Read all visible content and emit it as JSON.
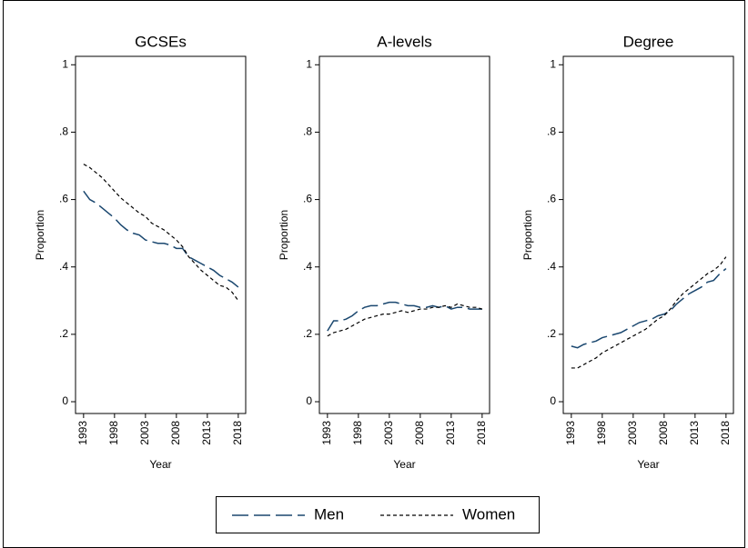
{
  "chart_data": [
    {
      "type": "line",
      "title": "GCSEs",
      "x_label": "Year",
      "y_label": "Proportion",
      "x": [
        1993,
        1994,
        1995,
        1996,
        1997,
        1998,
        1999,
        2000,
        2001,
        2002,
        2003,
        2004,
        2005,
        2006,
        2007,
        2008,
        2009,
        2010,
        2011,
        2012,
        2013,
        2014,
        2015,
        2016,
        2017,
        2018
      ],
      "series": [
        {
          "name": "Men",
          "color": "#1a476f",
          "values": [
            0.625,
            0.6,
            0.59,
            0.575,
            0.56,
            0.545,
            0.525,
            0.51,
            0.5,
            0.495,
            0.48,
            0.475,
            0.47,
            0.47,
            0.465,
            0.455,
            0.455,
            0.43,
            0.42,
            0.41,
            0.4,
            0.39,
            0.375,
            0.365,
            0.355,
            0.34
          ]
        },
        {
          "name": "Women",
          "color": "#000000",
          "values": [
            0.705,
            0.695,
            0.68,
            0.665,
            0.645,
            0.625,
            0.605,
            0.59,
            0.575,
            0.56,
            0.55,
            0.53,
            0.52,
            0.51,
            0.495,
            0.48,
            0.46,
            0.43,
            0.41,
            0.39,
            0.375,
            0.36,
            0.345,
            0.34,
            0.325,
            0.3
          ]
        }
      ],
      "xlim": [
        1991.7,
        2019.2
      ],
      "ylim": [
        -0.035,
        1.025
      ],
      "xticks": [
        1993,
        1998,
        2003,
        2008,
        2013,
        2018
      ],
      "yticks": [
        0,
        {
          "value": 0.2,
          "label": ".2"
        },
        {
          "value": 0.4,
          "label": ".4"
        },
        {
          "value": 0.6,
          "label": ".6"
        },
        {
          "value": 0.8,
          "label": ".8"
        },
        1
      ]
    },
    {
      "type": "line",
      "title": "A-levels",
      "x_label": "Year",
      "y_label": "Proportion",
      "x": [
        1993,
        1994,
        1995,
        1996,
        1997,
        1998,
        1999,
        2000,
        2001,
        2002,
        2003,
        2004,
        2005,
        2006,
        2007,
        2008,
        2009,
        2010,
        2011,
        2012,
        2013,
        2014,
        2015,
        2016,
        2017,
        2018
      ],
      "series": [
        {
          "name": "Men",
          "color": "#1a476f",
          "values": [
            0.21,
            0.24,
            0.24,
            0.245,
            0.255,
            0.27,
            0.28,
            0.285,
            0.285,
            0.29,
            0.295,
            0.295,
            0.29,
            0.285,
            0.285,
            0.28,
            0.28,
            0.285,
            0.28,
            0.285,
            0.275,
            0.28,
            0.28,
            0.275,
            0.275,
            0.275
          ]
        },
        {
          "name": "Women",
          "color": "#000000",
          "values": [
            0.195,
            0.205,
            0.21,
            0.215,
            0.225,
            0.235,
            0.245,
            0.25,
            0.255,
            0.26,
            0.26,
            0.265,
            0.27,
            0.265,
            0.27,
            0.275,
            0.275,
            0.28,
            0.28,
            0.285,
            0.28,
            0.29,
            0.285,
            0.28,
            0.28,
            0.275
          ]
        }
      ],
      "xlim": [
        1991.7,
        2019.2
      ],
      "ylim": [
        -0.035,
        1.025
      ],
      "xticks": [
        1993,
        1998,
        2003,
        2008,
        2013,
        2018
      ],
      "yticks": [
        0,
        {
          "value": 0.2,
          "label": ".2"
        },
        {
          "value": 0.4,
          "label": ".4"
        },
        {
          "value": 0.6,
          "label": ".6"
        },
        {
          "value": 0.8,
          "label": ".8"
        },
        1
      ]
    },
    {
      "type": "line",
      "title": "Degree",
      "x_label": "Year",
      "y_label": "Proportion",
      "x": [
        1993,
        1994,
        1995,
        1996,
        1997,
        1998,
        1999,
        2000,
        2001,
        2002,
        2003,
        2004,
        2005,
        2006,
        2007,
        2008,
        2009,
        2010,
        2011,
        2012,
        2013,
        2014,
        2015,
        2016,
        2017,
        2018
      ],
      "series": [
        {
          "name": "Men",
          "color": "#1a476f",
          "values": [
            0.165,
            0.16,
            0.17,
            0.175,
            0.18,
            0.19,
            0.195,
            0.2,
            0.205,
            0.215,
            0.225,
            0.235,
            0.24,
            0.245,
            0.255,
            0.26,
            0.27,
            0.29,
            0.305,
            0.32,
            0.33,
            0.34,
            0.355,
            0.36,
            0.38,
            0.395
          ]
        },
        {
          "name": "Women",
          "color": "#000000",
          "values": [
            0.1,
            0.1,
            0.11,
            0.12,
            0.13,
            0.145,
            0.155,
            0.165,
            0.175,
            0.185,
            0.195,
            0.205,
            0.215,
            0.23,
            0.245,
            0.255,
            0.275,
            0.3,
            0.32,
            0.335,
            0.35,
            0.365,
            0.38,
            0.39,
            0.405,
            0.43
          ]
        }
      ],
      "xlim": [
        1991.7,
        2019.2
      ],
      "ylim": [
        -0.035,
        1.025
      ],
      "xticks": [
        1993,
        1998,
        2003,
        2008,
        2013,
        2018
      ],
      "yticks": [
        0,
        {
          "value": 0.2,
          "label": ".2"
        },
        {
          "value": 0.4,
          "label": ".4"
        },
        {
          "value": 0.6,
          "label": ".6"
        },
        {
          "value": 0.8,
          "label": ".8"
        },
        1
      ]
    }
  ]
}
